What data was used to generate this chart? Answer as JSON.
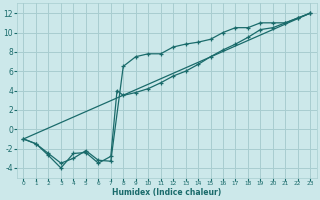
{
  "xlabel": "Humidex (Indice chaleur)",
  "bg_color": "#cce8ea",
  "grid_color": "#a8cdd0",
  "line_color": "#1a6b6b",
  "xlim": [
    -0.5,
    23.5
  ],
  "ylim": [
    -5,
    13
  ],
  "xticks": [
    0,
    1,
    2,
    3,
    4,
    5,
    6,
    7,
    8,
    9,
    10,
    11,
    12,
    13,
    14,
    15,
    16,
    17,
    18,
    19,
    20,
    21,
    22,
    23
  ],
  "yticks": [
    -4,
    -2,
    0,
    2,
    4,
    6,
    8,
    10,
    12
  ],
  "line1_x": [
    0,
    1,
    2,
    3,
    4,
    5,
    6,
    7,
    8,
    9,
    10,
    11,
    12,
    13,
    14,
    15,
    16,
    17,
    18,
    19,
    20,
    21,
    22,
    23
  ],
  "line1_y": [
    -1,
    -1.5,
    -2.5,
    -3.5,
    -3,
    -2.2,
    -3.2,
    -3.3,
    6.5,
    7.5,
    7.8,
    7.8,
    8.5,
    8.8,
    9.0,
    9.3,
    10,
    10.5,
    10.5,
    11,
    11,
    11,
    11.5,
    12
  ],
  "line2_x": [
    0,
    1,
    2,
    3,
    4,
    5,
    6,
    7,
    7.5,
    8,
    9,
    10,
    11,
    12,
    13,
    14,
    15,
    16,
    17,
    18,
    19,
    20,
    21,
    22,
    23
  ],
  "line2_y": [
    -1,
    -1.5,
    -2.7,
    -4,
    -2.5,
    -2.4,
    -3.5,
    -2.8,
    4,
    3.5,
    3.8,
    4.2,
    4.8,
    5.5,
    6.0,
    6.7,
    7.5,
    8.2,
    8.8,
    9.5,
    10.3,
    10.5,
    11,
    11.5,
    12
  ],
  "line3_x": [
    0,
    23
  ],
  "line3_y": [
    -1,
    12
  ]
}
